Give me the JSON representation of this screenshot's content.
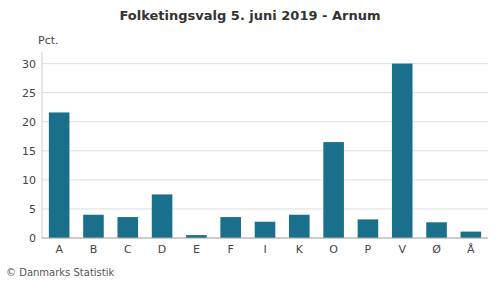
{
  "chart_data": {
    "type": "bar",
    "title": "Folketingsvalg 5. juni 2019 - Arnum",
    "categories": [
      "A",
      "B",
      "C",
      "D",
      "E",
      "F",
      "I",
      "K",
      "O",
      "P",
      "V",
      "Ø",
      "Å"
    ],
    "values": [
      21.6,
      4.0,
      3.6,
      7.5,
      0.5,
      3.6,
      2.8,
      4.0,
      16.5,
      3.2,
      30.0,
      2.7,
      1.1
    ],
    "color": "#1a6f8a",
    "ylabel": "Pct.",
    "annotations": [
      "© Danmarks Statistik"
    ],
    "ylim": [
      0,
      32
    ],
    "yticks": [
      0,
      5,
      10,
      15,
      20,
      25,
      30
    ],
    "grid": true
  }
}
